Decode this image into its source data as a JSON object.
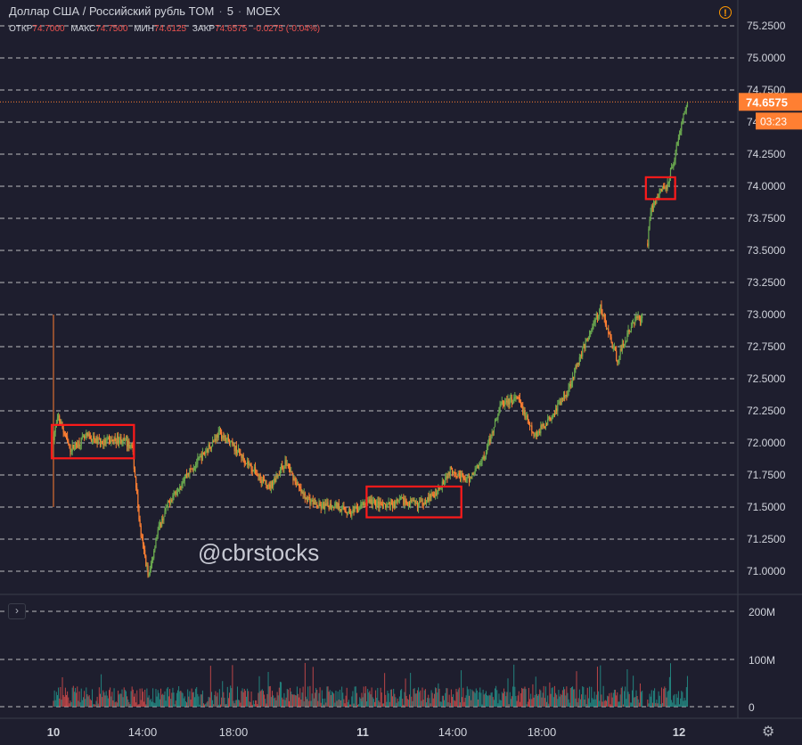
{
  "header": {
    "title": "Доллар США / Российский рубль TOM",
    "interval": "5",
    "exchange": "MOEX",
    "alert_icon": "alert-icon"
  },
  "ohlc": {
    "open_label": "ОТКР",
    "open": "74.7000",
    "high_label": "МАКС",
    "high": "74.7500",
    "low_label": "МИН",
    "low": "74.6125",
    "close_label": "ЗАКР",
    "close": "74.6575",
    "change": "-0.0275 (-0.04%)"
  },
  "watermark": "@cbrstocks",
  "price_badge": "74.6575",
  "timer_badge": "03:23",
  "controls": {
    "collapse": "›",
    "settings_icon": "gear-icon"
  },
  "colors": {
    "background": "#1e1e2e",
    "up": "#6aa84f",
    "down": "#ff7f32",
    "volume_up": "#26a69a",
    "volume_down": "#ef5350",
    "price_line": "#ff7f32",
    "highlight_box": "#ff1a1a",
    "alert": "#ff9800"
  },
  "chart_data": {
    "type": "candlestick",
    "y_axis": {
      "ticks": [
        "75.2500",
        "75.0000",
        "74.7500",
        "74.5000",
        "74.2500",
        "74.0000",
        "73.7500",
        "73.5000",
        "73.2500",
        "73.0000",
        "72.7500",
        "72.5000",
        "72.2500",
        "72.0000",
        "71.7500",
        "71.5000",
        "71.2500",
        "71.0000"
      ],
      "ylim": [
        70.88,
        75.35
      ]
    },
    "volume_axis": {
      "ticks": [
        "200M",
        "100M",
        "0"
      ]
    },
    "x_axis": {
      "ticks": [
        "10",
        "14:00",
        "18:00",
        "11",
        "14:00",
        "18:00",
        "12"
      ]
    },
    "grid": "horizontal dashed",
    "last_price": 74.6575,
    "series_path": [
      {
        "t": 0,
        "p": 72.05
      },
      {
        "t": 0.6,
        "p": 72.2
      },
      {
        "t": 2,
        "p": 71.95
      },
      {
        "t": 4,
        "p": 72.05
      },
      {
        "t": 6,
        "p": 72.0
      },
      {
        "t": 8,
        "p": 72.03
      },
      {
        "t": 9.5,
        "p": 71.97
      },
      {
        "t": 10.5,
        "p": 71.3
      },
      {
        "t": 11.5,
        "p": 70.95
      },
      {
        "t": 12.5,
        "p": 71.3
      },
      {
        "t": 14,
        "p": 71.55
      },
      {
        "t": 16,
        "p": 71.75
      },
      {
        "t": 18,
        "p": 71.9
      },
      {
        "t": 20,
        "p": 72.08
      },
      {
        "t": 22,
        "p": 71.95
      },
      {
        "t": 24,
        "p": 71.8
      },
      {
        "t": 26,
        "p": 71.65
      },
      {
        "t": 28,
        "p": 71.85
      },
      {
        "t": 30,
        "p": 71.6
      },
      {
        "t": 32,
        "p": 71.5
      },
      {
        "t": 34,
        "p": 71.52
      },
      {
        "t": 36,
        "p": 71.45
      },
      {
        "t": 38,
        "p": 71.55
      },
      {
        "t": 40,
        "p": 71.5
      },
      {
        "t": 42,
        "p": 71.55
      },
      {
        "t": 44,
        "p": 71.52
      },
      {
        "t": 46,
        "p": 71.6
      },
      {
        "t": 48,
        "p": 71.8
      },
      {
        "t": 50,
        "p": 71.7
      },
      {
        "t": 52,
        "p": 71.9
      },
      {
        "t": 54,
        "p": 72.3
      },
      {
        "t": 56,
        "p": 72.35
      },
      {
        "t": 58,
        "p": 72.05
      },
      {
        "t": 60,
        "p": 72.2
      },
      {
        "t": 62,
        "p": 72.4
      },
      {
        "t": 64,
        "p": 72.75
      },
      {
        "t": 66,
        "p": 73.05
      },
      {
        "t": 68,
        "p": 72.65
      },
      {
        "t": 70,
        "p": 72.95
      },
      {
        "t": 71,
        "p": 72.98
      },
      {
        "t": 72,
        "p": 73.8
      },
      {
        "t": 73,
        "p": 73.95
      },
      {
        "t": 74,
        "p": 74.0
      },
      {
        "t": 75,
        "p": 74.25
      },
      {
        "t": 76,
        "p": 74.55
      },
      {
        "t": 76.6,
        "p": 74.6575
      }
    ],
    "highlights": [
      {
        "t_start": 0,
        "t_end": 9.5,
        "low": 71.88,
        "high": 72.14
      },
      {
        "t_start": 38,
        "t_end": 49,
        "low": 71.42,
        "high": 71.66
      },
      {
        "t_start": 71.7,
        "t_end": 74.8,
        "low": 73.9,
        "high": 74.07
      }
    ]
  }
}
